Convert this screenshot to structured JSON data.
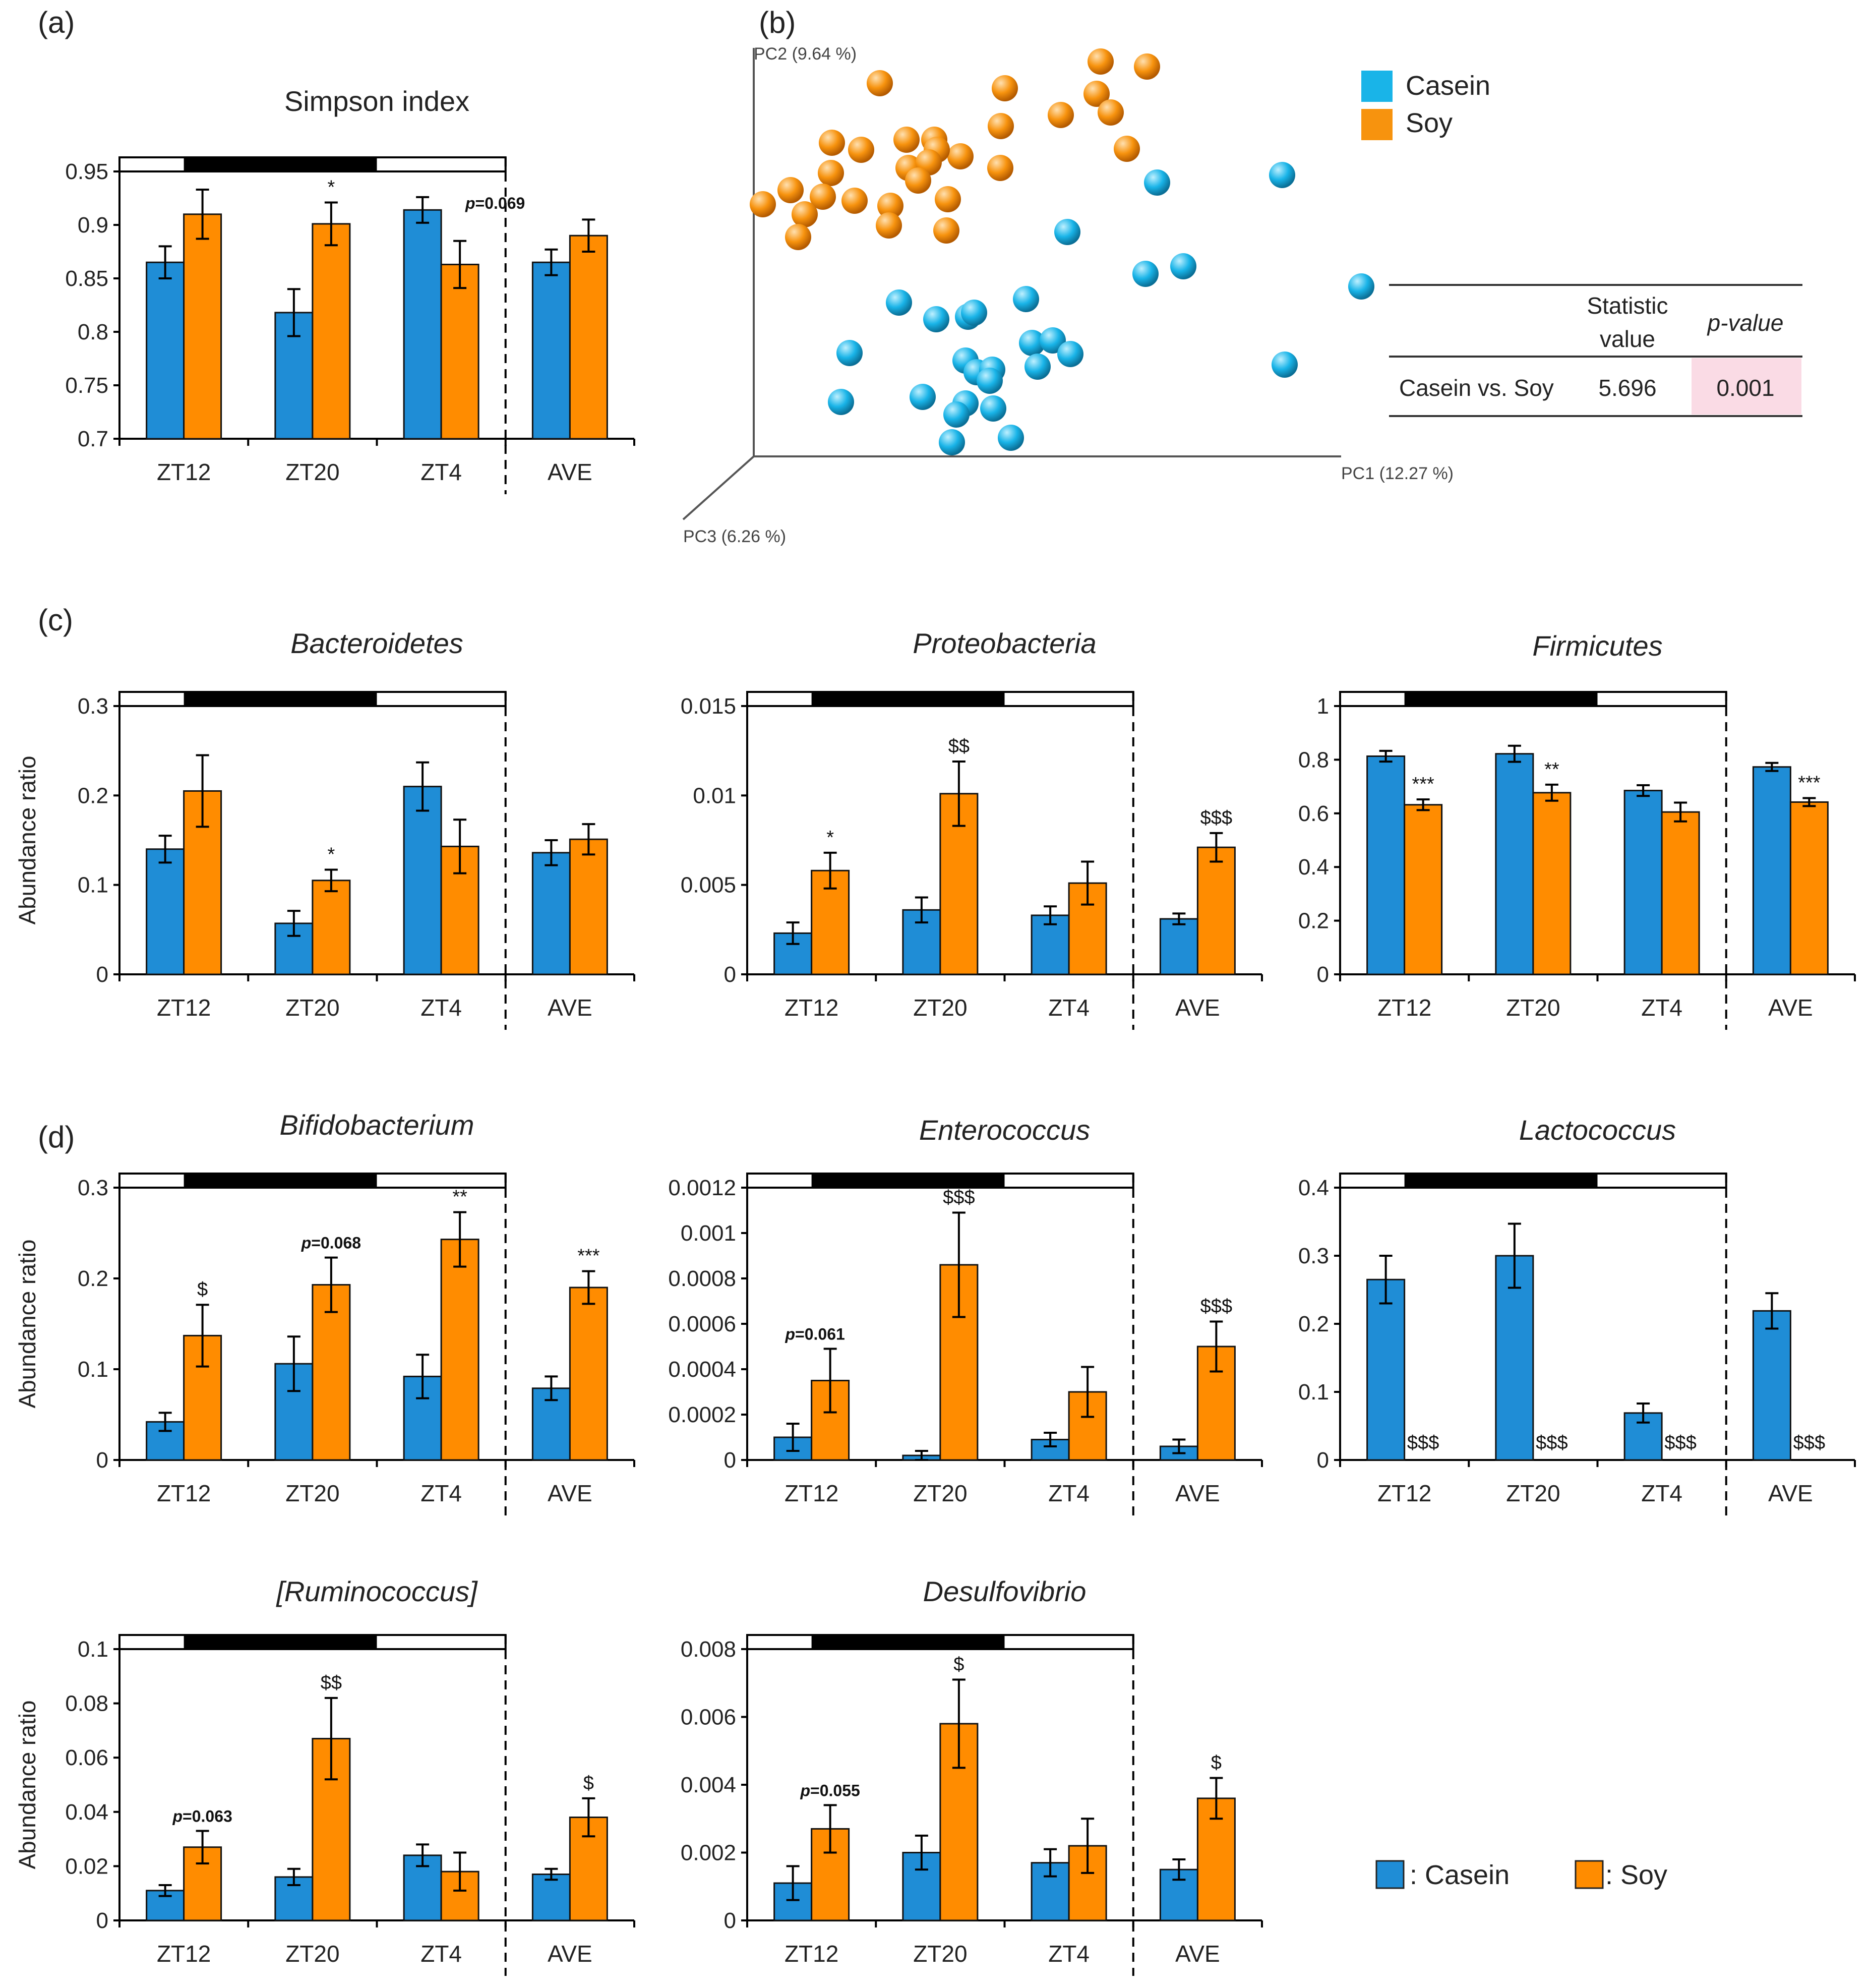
{
  "colors": {
    "casein": "#1f8dd6",
    "soy": "#ff8c00",
    "casein_pca": "#19b4e8",
    "soy_pca": "#f7930e",
    "pvalue_bg": "#fadbe5"
  },
  "panel_labels": {
    "a": "(a)",
    "b": "(b)",
    "c": "(c)",
    "d": "(d)"
  },
  "legend": {
    "casein": "Casein",
    "soy": "Soy",
    "casein_colon": ": Casein",
    "soy_colon": ": Soy"
  },
  "pca": {
    "axis_pc1": "PC1 (12.27 %)",
    "axis_pc2": "PC2 (9.64 %)",
    "axis_pc3": "PC3 (6.26 %)",
    "table": {
      "col_statistic_line1": "Statistic",
      "col_statistic_line2": "value",
      "col_pvalue": "p-value",
      "row_label": "Casein vs. Soy",
      "statistic": "5.696",
      "pvalue": "0.001"
    }
  },
  "chart_data": [
    {
      "id": "simpson",
      "type": "bar",
      "title": "Simpson index",
      "italic": false,
      "ylabel": "",
      "categories": [
        "ZT12",
        "ZT20",
        "ZT4",
        "AVE"
      ],
      "ylim": [
        0.7,
        0.95
      ],
      "yticks": [
        "0.7",
        "0.75",
        "0.8",
        "0.85",
        "0.9",
        "0.95"
      ],
      "series": [
        {
          "name": "Casein",
          "values": [
            0.865,
            0.818,
            0.914,
            0.865
          ],
          "errors": [
            0.015,
            0.022,
            0.012,
            0.012
          ]
        },
        {
          "name": "Soy",
          "values": [
            0.91,
            0.901,
            0.863,
            0.89
          ],
          "errors": [
            0.023,
            0.02,
            0.022,
            0.015
          ]
        }
      ],
      "annotations": [
        {
          "cat": 2,
          "series": 1,
          "text": "p=0.069",
          "dx": -5,
          "dy": 0
        },
        {
          "cat": 1,
          "series": 1,
          "text": "*"
        }
      ]
    },
    {
      "id": "bacteroidetes",
      "type": "bar",
      "title": "Bacteroidetes",
      "italic": true,
      "ylabel": "Abundance ratio",
      "categories": [
        "ZT12",
        "ZT20",
        "ZT4",
        "AVE"
      ],
      "ylim": [
        0,
        0.3
      ],
      "yticks": [
        "0",
        "0.1",
        "0.2",
        "0.3"
      ],
      "series": [
        {
          "name": "Casein",
          "values": [
            0.14,
            0.057,
            0.21,
            0.136
          ],
          "errors": [
            0.015,
            0.014,
            0.027,
            0.014
          ]
        },
        {
          "name": "Soy",
          "values": [
            0.205,
            0.105,
            0.143,
            0.151
          ],
          "errors": [
            0.04,
            0.012,
            0.03,
            0.017
          ]
        }
      ],
      "annotations": [
        {
          "cat": 1,
          "series": 1,
          "text": "*"
        }
      ]
    },
    {
      "id": "proteobacteria",
      "type": "bar",
      "title": "Proteobacteria",
      "italic": true,
      "ylabel": "",
      "categories": [
        "ZT12",
        "ZT20",
        "ZT4",
        "AVE"
      ],
      "ylim": [
        0,
        0.015
      ],
      "yticks": [
        "0",
        "0.005",
        "0.01",
        "0.015"
      ],
      "series": [
        {
          "name": "Casein",
          "values": [
            0.0023,
            0.0036,
            0.0033,
            0.0031
          ],
          "errors": [
            0.0006,
            0.0007,
            0.0005,
            0.0003
          ]
        },
        {
          "name": "Soy",
          "values": [
            0.0058,
            0.0101,
            0.0051,
            0.0071
          ],
          "errors": [
            0.001,
            0.0018,
            0.0012,
            0.0008
          ]
        }
      ],
      "annotations": [
        {
          "cat": 0,
          "series": 1,
          "text": "*"
        },
        {
          "cat": 1,
          "series": 1,
          "text": "$$"
        },
        {
          "cat": 3,
          "series": 1,
          "text": "$$$"
        }
      ]
    },
    {
      "id": "firmicutes",
      "type": "bar",
      "title": "Firmicutes",
      "italic": true,
      "ylabel": "",
      "categories": [
        "ZT12",
        "ZT20",
        "ZT4",
        "AVE"
      ],
      "ylim": [
        0,
        1
      ],
      "yticks": [
        "0",
        "0.2",
        "0.4",
        "0.6",
        "0.8",
        "1"
      ],
      "series": [
        {
          "name": "Casein",
          "values": [
            0.813,
            0.822,
            0.685,
            0.773
          ],
          "errors": [
            0.02,
            0.03,
            0.02,
            0.015
          ]
        },
        {
          "name": "Soy",
          "values": [
            0.632,
            0.677,
            0.605,
            0.642
          ],
          "errors": [
            0.02,
            0.03,
            0.035,
            0.015
          ]
        }
      ],
      "annotations": [
        {
          "cat": 0,
          "series": 1,
          "text": "***"
        },
        {
          "cat": 1,
          "series": 1,
          "text": "**"
        },
        {
          "cat": 3,
          "series": 1,
          "text": "***"
        }
      ]
    },
    {
      "id": "bifidobacterium",
      "type": "bar",
      "title": "Bifidobacterium",
      "italic": true,
      "ylabel": "Abundance ratio",
      "categories": [
        "ZT12",
        "ZT20",
        "ZT4",
        "AVE"
      ],
      "ylim": [
        0,
        0.3
      ],
      "yticks": [
        "0",
        "0.1",
        "0.2",
        "0.3"
      ],
      "series": [
        {
          "name": "Casein",
          "values": [
            0.042,
            0.106,
            0.092,
            0.079
          ],
          "errors": [
            0.01,
            0.03,
            0.024,
            0.013
          ]
        },
        {
          "name": "Soy",
          "values": [
            0.137,
            0.193,
            0.243,
            0.19
          ],
          "errors": [
            0.034,
            0.03,
            0.03,
            0.018
          ]
        }
      ],
      "annotations": [
        {
          "cat": 0,
          "series": 1,
          "text": "$"
        },
        {
          "cat": 1,
          "series": 1,
          "text": "p=0.068"
        },
        {
          "cat": 2,
          "series": 1,
          "text": "**"
        },
        {
          "cat": 3,
          "series": 1,
          "text": "***"
        }
      ]
    },
    {
      "id": "enterococcus",
      "type": "bar",
      "title": "Enterococcus",
      "italic": true,
      "ylabel": "",
      "categories": [
        "ZT12",
        "ZT20",
        "ZT4",
        "AVE"
      ],
      "ylim": [
        0,
        0.0012
      ],
      "yticks": [
        "0",
        "0.0002",
        "0.0004",
        "0.0006",
        "0.0008",
        "0.001",
        "0.0012"
      ],
      "series": [
        {
          "name": "Casein",
          "values": [
            0.0001,
            2e-05,
            9e-05,
            6e-05
          ],
          "errors": [
            6e-05,
            2e-05,
            3e-05,
            3e-05
          ]
        },
        {
          "name": "Soy",
          "values": [
            0.00035,
            0.00086,
            0.0003,
            0.0005
          ],
          "errors": [
            0.00014,
            0.00023,
            0.00011,
            0.00011
          ]
        }
      ],
      "annotations": [
        {
          "cat": 0,
          "series": 1,
          "text": "p=0.061",
          "dx": -30,
          "dy": 0
        },
        {
          "cat": 1,
          "series": 1,
          "text": "$$$"
        },
        {
          "cat": 3,
          "series": 1,
          "text": "$$$"
        }
      ]
    },
    {
      "id": "lactococcus",
      "type": "bar",
      "title": "Lactococcus",
      "italic": true,
      "ylabel": "",
      "categories": [
        "ZT12",
        "ZT20",
        "ZT4",
        "AVE"
      ],
      "ylim": [
        0,
        0.4
      ],
      "yticks": [
        "0",
        "0.1",
        "0.2",
        "0.3",
        "0.4"
      ],
      "series": [
        {
          "name": "Casein",
          "values": [
            0.265,
            0.3,
            0.069,
            0.219
          ],
          "errors": [
            0.035,
            0.047,
            0.014,
            0.026
          ]
        },
        {
          "name": "Soy",
          "values": [
            0,
            0,
            0,
            0
          ],
          "errors": [
            0,
            0,
            0,
            0
          ]
        }
      ],
      "annotations": [
        {
          "cat": 0,
          "series": 1,
          "text": "$$$",
          "dx": 0,
          "dy": -22
        },
        {
          "cat": 1,
          "series": 1,
          "text": "$$$",
          "dx": 0,
          "dy": -22
        },
        {
          "cat": 2,
          "series": 1,
          "text": "$$$",
          "dx": 0,
          "dy": -22
        },
        {
          "cat": 3,
          "series": 1,
          "text": "$$$",
          "dx": 0,
          "dy": -22
        }
      ]
    },
    {
      "id": "ruminococcus",
      "type": "bar",
      "title": "[Ruminococcus]",
      "italic": true,
      "ylabel": "Abundance ratio",
      "categories": [
        "ZT12",
        "ZT20",
        "ZT4",
        "AVE"
      ],
      "ylim": [
        0,
        0.1
      ],
      "yticks": [
        "0",
        "0.02",
        "0.04",
        "0.06",
        "0.08",
        "0.1"
      ],
      "series": [
        {
          "name": "Casein",
          "values": [
            0.011,
            0.016,
            0.024,
            0.017
          ],
          "errors": [
            0.002,
            0.003,
            0.004,
            0.002
          ]
        },
        {
          "name": "Soy",
          "values": [
            0.027,
            0.067,
            0.018,
            0.038
          ],
          "errors": [
            0.006,
            0.015,
            0.007,
            0.007
          ]
        }
      ],
      "annotations": [
        {
          "cat": 0,
          "series": 1,
          "text": "p=0.063"
        },
        {
          "cat": 1,
          "series": 1,
          "text": "$$"
        },
        {
          "cat": 3,
          "series": 1,
          "text": "$"
        }
      ]
    },
    {
      "id": "desulfovibrio",
      "type": "bar",
      "title": "Desulfovibrio",
      "italic": true,
      "ylabel": "",
      "categories": [
        "ZT12",
        "ZT20",
        "ZT4",
        "AVE"
      ],
      "ylim": [
        0,
        0.008
      ],
      "yticks": [
        "0",
        "0.002",
        "0.004",
        "0.006",
        "0.008"
      ],
      "series": [
        {
          "name": "Casein",
          "values": [
            0.0011,
            0.002,
            0.0017,
            0.0015
          ],
          "errors": [
            0.0005,
            0.0005,
            0.0004,
            0.0003
          ]
        },
        {
          "name": "Soy",
          "values": [
            0.0027,
            0.0058,
            0.0022,
            0.0036
          ],
          "errors": [
            0.0007,
            0.0013,
            0.0008,
            0.0006
          ]
        }
      ],
      "annotations": [
        {
          "cat": 0,
          "series": 1,
          "text": "p=0.055"
        },
        {
          "cat": 1,
          "series": 1,
          "text": "$"
        },
        {
          "cat": 3,
          "series": 1,
          "text": "$"
        }
      ]
    }
  ]
}
